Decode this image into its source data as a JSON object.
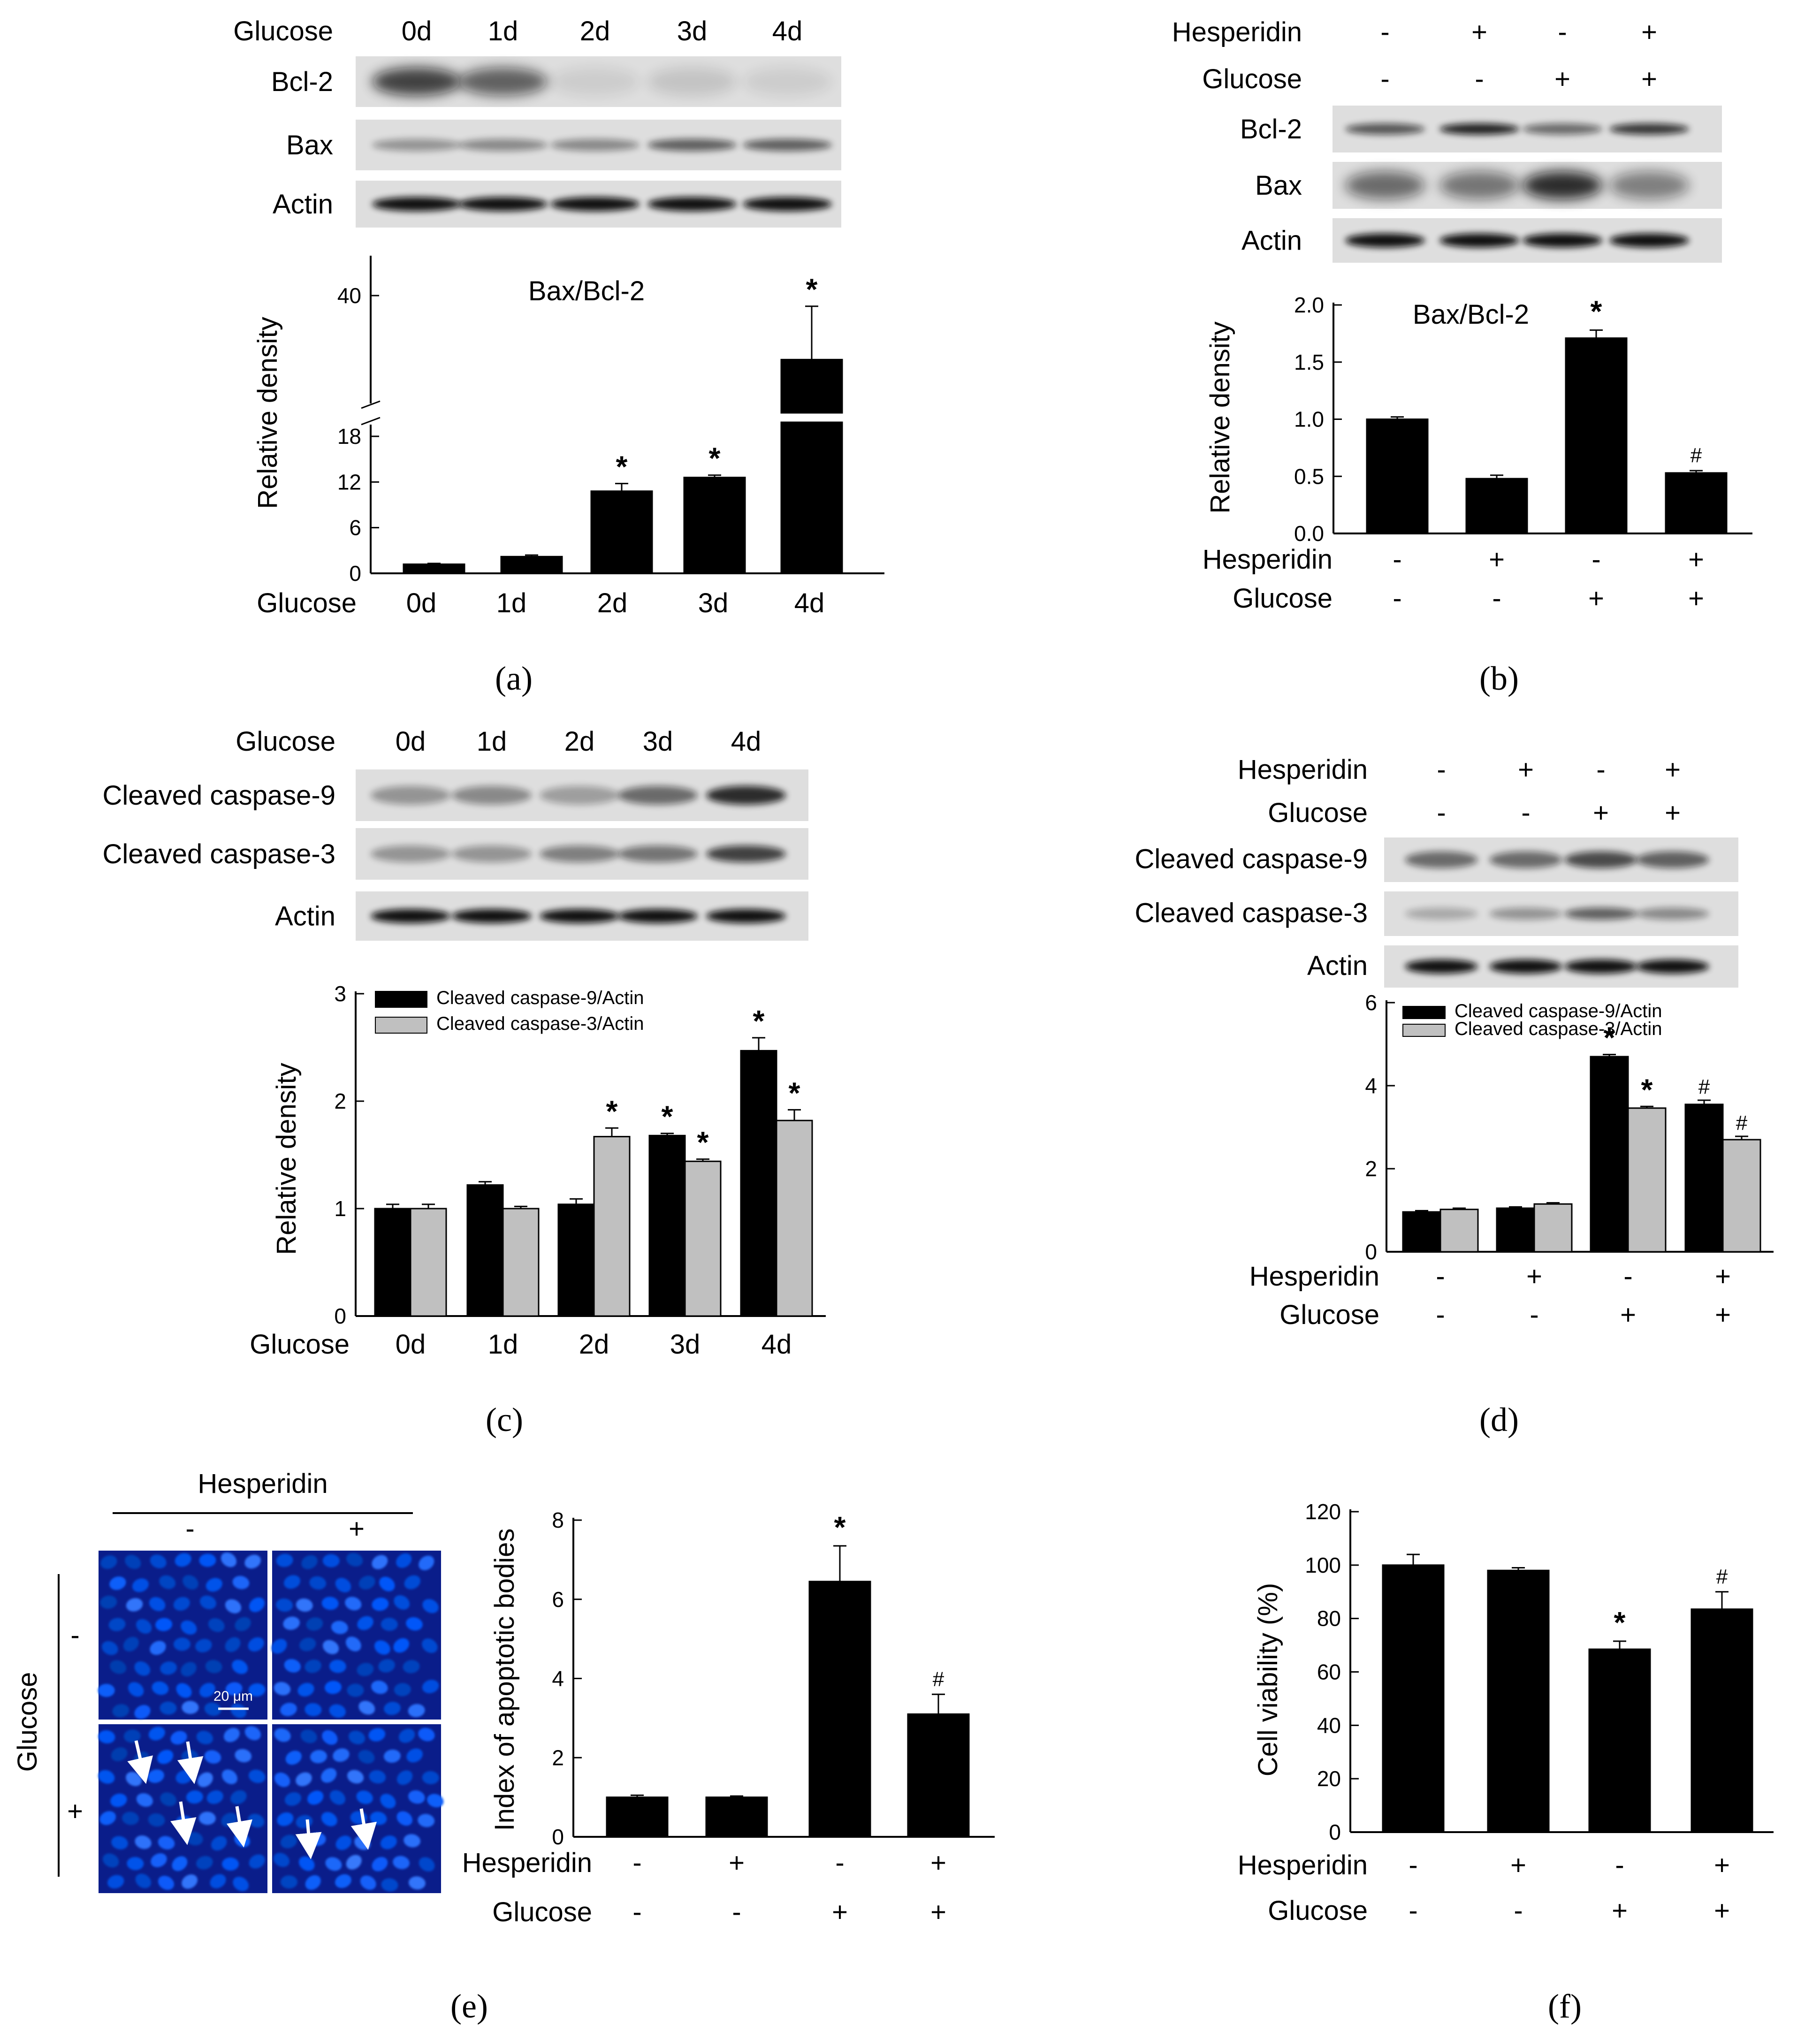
{
  "colors": {
    "dark_bar": "#000000",
    "light_bar": "#c0c0c0",
    "micrograph_bg": "#0a1d8a",
    "nucleus": "#1e5bff"
  },
  "panels": {
    "a": {
      "caption": "(a)",
      "blot": {
        "condition_label": "Glucose",
        "lanes": [
          "0d",
          "1d",
          "2d",
          "3d",
          "4d"
        ],
        "rows": [
          "Bcl-2",
          "Bax",
          "Actin"
        ]
      }
    },
    "b": {
      "caption": "(b)",
      "blot": {
        "treatments": [
          {
            "label": "Hesperidin",
            "signs": [
              "-",
              "+",
              "-",
              "+"
            ]
          },
          {
            "label": "Glucose",
            "signs": [
              "-",
              "-",
              "+",
              "+"
            ]
          }
        ],
        "rows": [
          "Bcl-2",
          "Bax",
          "Actin"
        ]
      }
    },
    "c": {
      "caption": "(c)",
      "blot": {
        "condition_label": "Glucose",
        "lanes": [
          "0d",
          "1d",
          "2d",
          "3d",
          "4d"
        ],
        "rows": [
          "Cleaved caspase-9",
          "Cleaved caspase-3",
          "Actin"
        ]
      }
    },
    "d": {
      "caption": "(d)",
      "blot": {
        "treatments": [
          {
            "label": "Hesperidin",
            "signs": [
              "-",
              "+",
              "-",
              "+"
            ]
          },
          {
            "label": "Glucose",
            "signs": [
              "-",
              "-",
              "+",
              "+"
            ]
          }
        ],
        "rows": [
          "Cleaved caspase-9",
          "Cleaved caspase-3",
          "Actin"
        ]
      }
    },
    "e": {
      "caption": "(e)",
      "micrograph": {
        "col_header": "Hesperidin",
        "col_signs": [
          "-",
          "+"
        ],
        "row_header": "Glucose",
        "row_signs": [
          "-",
          "+"
        ],
        "scale_bar": "20 μm"
      }
    },
    "f": {
      "caption": "(f)"
    }
  },
  "chart_data": [
    {
      "id": "a",
      "type": "bar",
      "title": "Bax/Bcl-2",
      "ylabel": "Relative density",
      "xlabel": "Glucose",
      "categories": [
        "0d",
        "1d",
        "2d",
        "3d",
        "4d"
      ],
      "values": [
        1.2,
        2.2,
        10.8,
        12.6,
        28.0
      ],
      "errors": [
        0.1,
        0.2,
        1.0,
        0.3,
        10.0
      ],
      "markers": [
        "",
        "",
        "*",
        "*",
        "*"
      ],
      "y_ticks_lower": [
        "0",
        "6",
        "12",
        "18"
      ],
      "y_ticks_upper": [
        "40"
      ],
      "axis_break": true,
      "ylim_lower": [
        0,
        18
      ]
    },
    {
      "id": "b",
      "type": "bar",
      "title": "Bax/Bcl-2",
      "ylabel": "Relative density",
      "row_labels": [
        "Hesperidin",
        "Glucose"
      ],
      "category_signs": [
        [
          "-",
          "+",
          "-",
          "+"
        ],
        [
          "-",
          "-",
          "+",
          "+"
        ]
      ],
      "values": [
        1.0,
        0.48,
        1.71,
        0.53
      ],
      "errors": [
        0.02,
        0.03,
        0.07,
        0.02
      ],
      "markers": [
        "",
        "",
        "*",
        "#"
      ],
      "ylim": [
        0,
        2.0
      ],
      "y_ticks": [
        "0.0",
        "0.5",
        "1.0",
        "1.5",
        "2.0"
      ]
    },
    {
      "id": "c",
      "type": "bar",
      "ylabel": "Relative density",
      "xlabel": "Glucose",
      "categories": [
        "0d",
        "1d",
        "2d",
        "3d",
        "4d"
      ],
      "series": [
        {
          "name": "Cleaved caspase-9/Actin",
          "values": [
            1.0,
            1.22,
            1.04,
            1.68,
            2.47
          ],
          "errors": [
            0.04,
            0.03,
            0.05,
            0.02,
            0.12
          ],
          "markers": [
            "",
            "",
            "",
            "*",
            "*"
          ]
        },
        {
          "name": "Cleaved caspase-3/Actin",
          "values": [
            1.0,
            1.0,
            1.67,
            1.44,
            1.82
          ],
          "errors": [
            0.04,
            0.02,
            0.08,
            0.02,
            0.1
          ],
          "markers": [
            "",
            "",
            "*",
            "*",
            "*"
          ]
        }
      ],
      "ylim": [
        0,
        3
      ],
      "y_ticks": [
        "0",
        "1",
        "2",
        "3"
      ]
    },
    {
      "id": "d",
      "type": "bar",
      "row_labels": [
        "Hesperidin",
        "Glucose"
      ],
      "category_signs": [
        [
          "-",
          "+",
          "-",
          "+"
        ],
        [
          "-",
          "-",
          "+",
          "+"
        ]
      ],
      "series": [
        {
          "name": "Cleaved caspase-9/Actin",
          "values": [
            0.96,
            1.05,
            4.7,
            3.55
          ],
          "errors": [
            0.03,
            0.03,
            0.05,
            0.1
          ],
          "markers": [
            "",
            "",
            "*",
            "#"
          ]
        },
        {
          "name": "Cleaved caspase-3/Actin",
          "values": [
            1.02,
            1.15,
            3.46,
            2.7
          ],
          "errors": [
            0.03,
            0.03,
            0.04,
            0.08
          ],
          "markers": [
            "",
            "",
            "*",
            "#"
          ]
        }
      ],
      "ylim": [
        0,
        6
      ],
      "y_ticks": [
        "0",
        "2",
        "4",
        "6"
      ]
    },
    {
      "id": "e",
      "type": "bar",
      "ylabel": "Index of apoptotic bodies",
      "row_labels": [
        "Hesperidin",
        "Glucose"
      ],
      "category_signs": [
        [
          "-",
          "+",
          "-",
          "+"
        ],
        [
          "-",
          "-",
          "+",
          "+"
        ]
      ],
      "values": [
        1.0,
        1.0,
        6.45,
        3.1
      ],
      "errors": [
        0.05,
        0.03,
        0.9,
        0.5
      ],
      "markers": [
        "",
        "",
        "*",
        "#"
      ],
      "ylim": [
        0,
        8
      ],
      "y_ticks": [
        "0",
        "2",
        "4",
        "6",
        "8"
      ]
    },
    {
      "id": "f",
      "type": "bar",
      "ylabel": "Cell viability (%)",
      "row_labels": [
        "Hesperidin",
        "Glucose"
      ],
      "category_signs": [
        [
          "-",
          "+",
          "-",
          "+"
        ],
        [
          "-",
          "-",
          "+",
          "+"
        ]
      ],
      "values": [
        100,
        98,
        68.5,
        83.5
      ],
      "errors": [
        4,
        1,
        3,
        6.5
      ],
      "markers": [
        "",
        "",
        "*",
        "#"
      ],
      "ylim": [
        0,
        120
      ],
      "y_ticks": [
        "0",
        "20",
        "40",
        "60",
        "80",
        "100",
        "120"
      ]
    }
  ]
}
